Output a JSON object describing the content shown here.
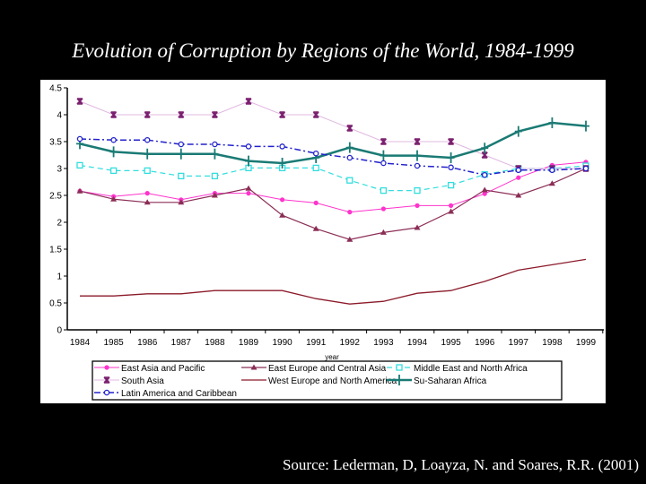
{
  "slide": {
    "title": "Evolution of Corruption by Regions of the World, 1984-1999",
    "source": "Source: Lederman, D, Loayza, N. and Soares, R.R. (2001)"
  },
  "chart_data": {
    "type": "line",
    "title": "Evolution of Corruption by Regions of the World, 1984-1999",
    "xlabel": "year",
    "ylabel": "",
    "ylim": [
      0,
      4.5
    ],
    "yticks": [
      "0",
      "0.5",
      "1",
      "1.5",
      "2",
      "2.5",
      "3",
      "3.5",
      "4",
      "4.5"
    ],
    "ytick_values": [
      0,
      0.5,
      1,
      1.5,
      2,
      2.5,
      3,
      3.5,
      4,
      4.5
    ],
    "x": [
      "1984",
      "1985",
      "1986",
      "1987",
      "1988",
      "1989",
      "1990",
      "1991",
      "1992",
      "1993",
      "1994",
      "1995",
      "1996",
      "1997",
      "1998",
      "1999"
    ],
    "grid": false,
    "legend_position": "bottom",
    "series": [
      {
        "name": "East Asia and Pacific",
        "color": "#ff33cc",
        "marker": "circle",
        "dash": "solid",
        "width": 1,
        "values": [
          2.58,
          2.48,
          2.54,
          2.42,
          2.54,
          2.54,
          2.42,
          2.36,
          2.19,
          2.25,
          2.31,
          2.31,
          2.53,
          2.83,
          3.06,
          3.12
        ]
      },
      {
        "name": "East Europe and Central Asia",
        "color": "#8b2e56",
        "marker": "triangle",
        "dash": "solid",
        "width": 1.2,
        "values": [
          2.58,
          2.43,
          2.37,
          2.37,
          2.5,
          2.63,
          2.13,
          1.88,
          1.68,
          1.81,
          1.9,
          2.2,
          2.6,
          2.5,
          2.72,
          3.0
        ]
      },
      {
        "name": "Middle East and North Africa",
        "color": "#33dddd",
        "marker": "square",
        "dash": "dashed",
        "width": 1.2,
        "values": [
          3.06,
          2.96,
          2.96,
          2.86,
          2.86,
          3.01,
          3.01,
          3.01,
          2.78,
          2.59,
          2.59,
          2.69,
          2.89,
          3.0,
          3.0,
          3.05
        ]
      },
      {
        "name": "South Asia",
        "color": "#e0b8e0",
        "marker": "star",
        "markerColor": "#7a1f6e",
        "dash": "solid",
        "width": 1,
        "values": [
          4.25,
          4.0,
          4.0,
          4.0,
          4.0,
          4.25,
          4.0,
          4.0,
          3.75,
          3.5,
          3.5,
          3.5,
          3.25,
          3.0,
          3.0,
          3.0
        ]
      },
      {
        "name": "West Europe and North America",
        "color": "#8b1a2a",
        "marker": "none",
        "dash": "solid",
        "width": 1.3,
        "values": [
          0.63,
          0.63,
          0.67,
          0.67,
          0.73,
          0.73,
          0.73,
          0.58,
          0.48,
          0.53,
          0.68,
          0.73,
          0.9,
          1.11,
          1.21,
          1.31
        ]
      },
      {
        "name": "Su-Saharan Africa",
        "color": "#1a7a74",
        "marker": "plus",
        "dash": "solid",
        "width": 2.5,
        "values": [
          3.46,
          3.31,
          3.27,
          3.27,
          3.27,
          3.14,
          3.1,
          3.2,
          3.39,
          3.24,
          3.24,
          3.2,
          3.38,
          3.69,
          3.85,
          3.79
        ]
      },
      {
        "name": "Latin America and Caribbean",
        "color": "#2222cc",
        "marker": "circle-open",
        "dash": "dashdot",
        "width": 1.5,
        "values": [
          3.55,
          3.53,
          3.53,
          3.45,
          3.45,
          3.41,
          3.41,
          3.28,
          3.2,
          3.1,
          3.05,
          3.02,
          2.88,
          2.97,
          2.97,
          3.0
        ]
      }
    ]
  }
}
